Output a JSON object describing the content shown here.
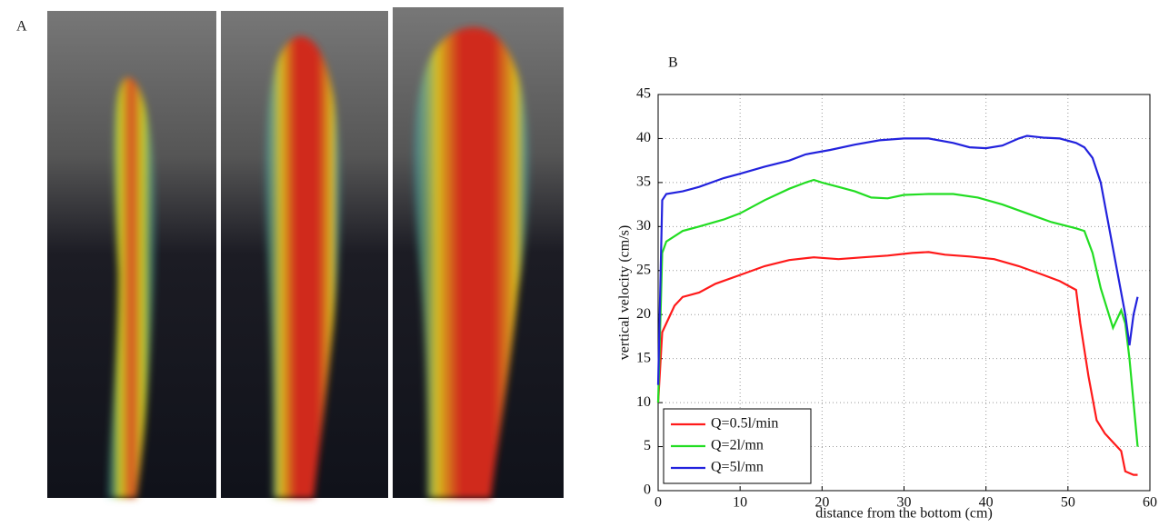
{
  "figure": {
    "panel_a_label": "A"
  },
  "chart_data": {
    "type": "line",
    "panel_label": "B",
    "x_label": "distance from the bottom (cm)",
    "y_label": "vertical velocity (cm/s)",
    "xlim": [
      0,
      60
    ],
    "xticks": [
      0,
      10,
      20,
      30,
      40,
      50,
      60
    ],
    "ylim": [
      0,
      45
    ],
    "yticks": [
      0,
      5,
      10,
      15,
      20,
      25,
      30,
      35,
      40,
      45
    ],
    "grid": true,
    "legend": "lower-left",
    "series": [
      {
        "name": "Q=0.5l/min",
        "color": "#ff1a1a",
        "x": [
          0,
          0.5,
          1,
          2,
          3,
          5,
          7,
          10,
          13,
          16,
          19,
          22,
          25,
          28,
          31,
          33,
          35,
          38,
          41,
          44,
          47,
          49,
          51,
          51.5,
          52.5,
          53.5,
          54.5,
          55.5,
          56.5,
          57,
          58,
          58.5
        ],
        "values": [
          10,
          18,
          19,
          21,
          22,
          22.5,
          23.5,
          24.5,
          25.5,
          26.2,
          26.5,
          26.3,
          26.5,
          26.7,
          27,
          27.1,
          26.8,
          26.6,
          26.3,
          25.5,
          24.5,
          23.8,
          22.8,
          19,
          13,
          8,
          6.5,
          5.5,
          4.5,
          2.2,
          1.8,
          1.8
        ]
      },
      {
        "name": "Q=2l/mn",
        "color": "#22dd22",
        "x": [
          0,
          0.5,
          1,
          3,
          5,
          8,
          10,
          13,
          16,
          18,
          19,
          20,
          22,
          24,
          26,
          28,
          30,
          33,
          36,
          39,
          42,
          45,
          48,
          51,
          52,
          53,
          54,
          55.5,
          56.5,
          57,
          57.5,
          58,
          58.5
        ],
        "values": [
          10,
          27,
          28.3,
          29.5,
          30,
          30.8,
          31.5,
          33,
          34.3,
          35,
          35.3,
          35,
          34.5,
          34,
          33.3,
          33.2,
          33.6,
          33.7,
          33.7,
          33.3,
          32.5,
          31.5,
          30.5,
          29.8,
          29.5,
          27,
          23,
          18.5,
          20.5,
          19,
          15,
          10,
          5
        ]
      },
      {
        "name": "Q=5l/mn",
        "color": "#2222dd",
        "x": [
          0,
          0.5,
          1,
          3,
          5,
          8,
          10,
          13,
          16,
          18,
          21,
          24,
          27,
          30,
          33,
          36,
          38,
          40,
          42,
          44,
          45,
          47,
          49,
          51,
          52,
          53,
          54,
          55,
          56,
          57,
          57.5,
          58,
          58.5
        ],
        "values": [
          12,
          33,
          33.7,
          34,
          34.5,
          35.5,
          36,
          36.8,
          37.5,
          38.2,
          38.7,
          39.3,
          39.8,
          40,
          40,
          39.5,
          39,
          38.9,
          39.2,
          40,
          40.3,
          40.1,
          40,
          39.5,
          39,
          37.8,
          35,
          30,
          25,
          20,
          16.5,
          20,
          22
        ]
      }
    ]
  }
}
